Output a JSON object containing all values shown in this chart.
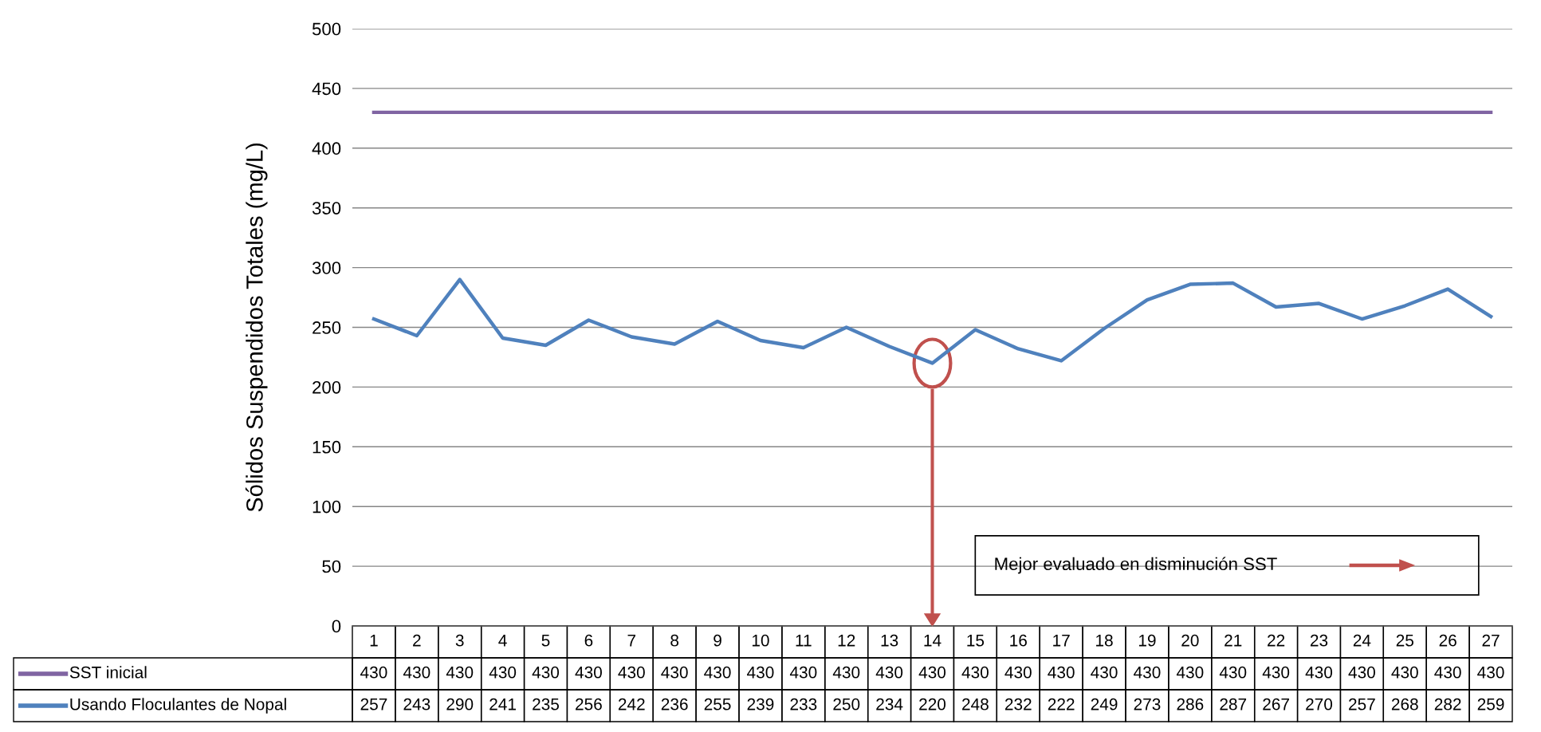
{
  "chart_data": {
    "type": "line",
    "ylabel": "Sólidos Suspendidos Totales (mg/L)",
    "categories": [
      "1",
      "2",
      "3",
      "4",
      "5",
      "6",
      "7",
      "8",
      "9",
      "10",
      "11",
      "12",
      "13",
      "14",
      "15",
      "16",
      "17",
      "18",
      "19",
      "20",
      "21",
      "22",
      "23",
      "24",
      "25",
      "26",
      "27"
    ],
    "series": [
      {
        "name": "SST inicial",
        "color": "#8064a2",
        "values": [
          430,
          430,
          430,
          430,
          430,
          430,
          430,
          430,
          430,
          430,
          430,
          430,
          430,
          430,
          430,
          430,
          430,
          430,
          430,
          430,
          430,
          430,
          430,
          430,
          430,
          430,
          430
        ]
      },
      {
        "name": "Usando Floculantes de Nopal",
        "color": "#4f81bd",
        "values": [
          257,
          243,
          290,
          241,
          235,
          256,
          242,
          236,
          255,
          239,
          233,
          250,
          234,
          220,
          248,
          232,
          222,
          249,
          273,
          286,
          287,
          267,
          270,
          257,
          268,
          282,
          259
        ]
      }
    ],
    "ylim": [
      0,
      500
    ],
    "yticks": [
      0,
      50,
      100,
      150,
      200,
      250,
      300,
      350,
      400,
      450,
      500
    ],
    "grid": "y",
    "data_labels": true,
    "marker": "none",
    "line_style": "solid",
    "legend": "bottom",
    "annotations": [
      "Mejor evaluado en disminución SST"
    ]
  }
}
